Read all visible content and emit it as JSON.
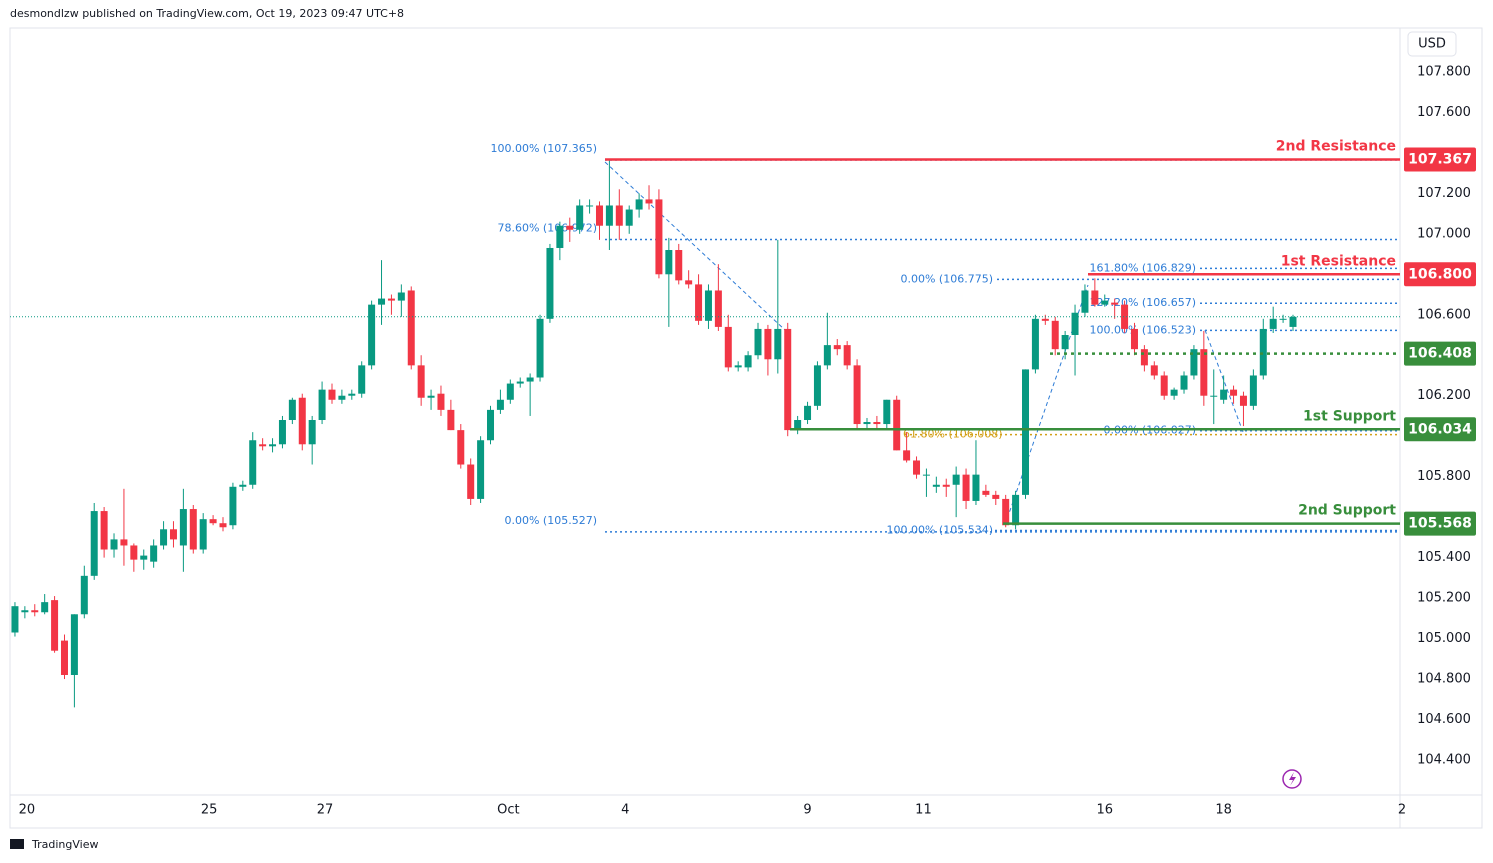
{
  "header": "desmondlzw published on TradingView.com, Oct 19, 2023 09:47 UTC+8",
  "footer": "TradingView",
  "chart_data": {
    "type": "candlestick",
    "currency": "USD",
    "open": [
      105.03,
      105.13,
      105.14,
      105.13,
      105.19,
      104.99,
      104.82,
      105.12,
      105.31,
      105.63,
      105.44,
      105.49,
      105.46,
      105.39,
      105.38,
      105.46,
      105.54,
      105.46,
      105.64,
      105.44,
      105.59,
      105.57,
      105.56,
      105.75,
      105.76,
      105.96,
      105.95,
      105.96,
      106.08,
      106.19,
      105.96,
      106.08,
      106.23,
      106.18,
      106.2,
      106.21,
      106.35,
      106.65,
      106.68,
      106.67,
      106.72,
      106.35,
      106.19,
      106.21,
      106.13,
      106.03,
      105.86,
      105.69,
      105.98,
      106.13,
      106.18,
      106.26,
      106.27,
      106.29,
      106.58,
      106.93,
      107.04,
      107.02,
      107.14,
      107.14,
      107.04,
      107.14,
      107.04,
      107.12,
      107.17,
      107.17,
      106.8,
      106.92,
      106.77,
      106.75,
      106.57,
      106.72,
      106.54,
      106.34,
      106.34,
      106.4,
      106.53,
      106.38,
      106.53,
      106.03,
      106.08,
      106.15,
      106.35,
      106.45,
      106.45,
      106.35,
      106.06,
      106.07,
      106.06,
      106.18,
      105.93,
      105.88,
      105.81,
      105.75,
      105.76,
      105.76,
      105.81,
      105.68,
      105.73,
      105.71,
      105.69,
      105.56,
      105.71,
      106.33,
      106.58,
      106.57,
      106.43,
      106.5,
      106.61,
      106.72,
      106.65,
      106.66,
      106.65,
      106.53,
      106.43,
      106.35,
      106.3,
      106.2,
      106.23,
      106.3,
      106.43,
      106.2,
      106.18,
      106.23,
      106.2,
      106.15,
      106.3,
      106.53,
      106.58,
      106.54
    ],
    "high": [
      105.18,
      105.16,
      105.17,
      105.22,
      105.21,
      105.02,
      105.12,
      105.36,
      105.67,
      105.65,
      105.52,
      105.74,
      105.47,
      105.44,
      105.49,
      105.58,
      105.58,
      105.74,
      105.66,
      105.62,
      105.61,
      105.6,
      105.77,
      105.78,
      106.02,
      105.99,
      105.99,
      106.1,
      106.19,
      106.21,
      106.1,
      106.27,
      106.26,
      106.23,
      106.23,
      106.37,
      106.67,
      106.87,
      106.7,
      106.75,
      106.74,
      106.4,
      106.23,
      106.25,
      106.18,
      106.06,
      105.89,
      106.0,
      106.15,
      106.23,
      106.28,
      106.29,
      106.31,
      106.6,
      106.95,
      107.06,
      107.08,
      107.17,
      107.17,
      107.16,
      107.37,
      107.22,
      107.14,
      107.2,
      107.24,
      107.22,
      106.98,
      106.95,
      106.82,
      106.8,
      106.75,
      106.85,
      106.6,
      106.37,
      106.42,
      106.56,
      106.55,
      106.97,
      106.56,
      106.1,
      106.17,
      106.37,
      106.61,
      106.48,
      106.47,
      106.38,
      106.09,
      106.1,
      106.18,
      106.2,
      106.02,
      105.9,
      105.84,
      105.8,
      105.79,
      105.85,
      105.84,
      105.98,
      105.76,
      105.73,
      105.71,
      105.73,
      106.33,
      106.6,
      106.6,
      106.59,
      106.52,
      106.65,
      106.75,
      106.78,
      106.7,
      106.68,
      106.67,
      106.56,
      106.45,
      106.37,
      106.32,
      106.24,
      106.32,
      106.45,
      106.52,
      106.33,
      106.3,
      106.25,
      106.22,
      106.33,
      106.58,
      106.64,
      106.6,
      106.6
    ],
    "low": [
      105.01,
      105.1,
      105.11,
      105.12,
      104.93,
      104.8,
      104.66,
      105.1,
      105.29,
      105.4,
      105.4,
      105.36,
      105.33,
      105.34,
      105.35,
      105.44,
      105.45,
      105.33,
      105.42,
      105.42,
      105.56,
      105.53,
      105.54,
      105.73,
      105.74,
      105.93,
      105.92,
      105.94,
      106.06,
      105.93,
      105.86,
      106.06,
      106.16,
      106.16,
      106.18,
      106.19,
      106.33,
      106.55,
      106.6,
      106.59,
      106.33,
      106.15,
      106.13,
      106.1,
      106.03,
      105.84,
      105.66,
      105.67,
      105.96,
      106.11,
      106.16,
      106.24,
      106.1,
      106.27,
      106.56,
      106.87,
      106.96,
      107.0,
      107.1,
      106.97,
      106.92,
      106.97,
      107.0,
      107.08,
      107.12,
      106.78,
      106.54,
      106.75,
      106.73,
      106.55,
      106.53,
      106.52,
      106.32,
      106.32,
      106.32,
      106.38,
      106.3,
      106.31,
      106.0,
      106.01,
      106.06,
      106.13,
      106.33,
      106.4,
      106.33,
      106.04,
      106.04,
      106.03,
      106.04,
      105.93,
      105.87,
      105.79,
      105.7,
      105.72,
      105.7,
      105.6,
      105.64,
      105.66,
      105.7,
      105.66,
      105.55,
      105.54,
      105.69,
      106.31,
      106.55,
      106.4,
      106.38,
      106.3,
      106.59,
      106.64,
      106.64,
      106.58,
      106.51,
      106.4,
      106.32,
      106.28,
      106.18,
      106.18,
      106.21,
      106.28,
      106.15,
      106.06,
      106.16,
      106.16,
      106.05,
      106.13,
      106.28,
      106.51,
      106.56,
      106.52
    ],
    "close": [
      105.16,
      105.14,
      105.13,
      105.18,
      104.94,
      104.82,
      105.12,
      105.31,
      105.63,
      105.44,
      105.49,
      105.46,
      105.39,
      105.41,
      105.46,
      105.54,
      105.49,
      105.64,
      105.44,
      105.59,
      105.57,
      105.55,
      105.75,
      105.76,
      105.98,
      105.95,
      105.96,
      106.08,
      106.18,
      105.96,
      106.08,
      106.23,
      106.18,
      106.2,
      106.21,
      106.35,
      106.65,
      106.68,
      106.67,
      106.71,
      106.35,
      106.19,
      106.2,
      106.13,
      106.03,
      105.86,
      105.69,
      105.98,
      106.13,
      106.18,
      106.26,
      106.27,
      106.29,
      106.58,
      106.93,
      107.04,
      107.02,
      107.14,
      107.14,
      107.04,
      107.14,
      107.04,
      107.12,
      107.17,
      107.15,
      106.8,
      106.92,
      106.77,
      106.75,
      106.57,
      106.72,
      106.54,
      106.34,
      106.35,
      106.4,
      106.53,
      106.38,
      106.53,
      106.03,
      106.08,
      106.15,
      106.35,
      106.45,
      106.43,
      106.35,
      106.06,
      106.07,
      106.06,
      106.18,
      105.93,
      105.88,
      105.81,
      105.81,
      105.76,
      105.75,
      105.81,
      105.68,
      105.81,
      105.71,
      105.69,
      105.56,
      105.71,
      106.33,
      106.58,
      106.57,
      106.43,
      106.5,
      106.61,
      106.72,
      106.65,
      106.67,
      106.65,
      106.53,
      106.43,
      106.35,
      106.3,
      106.2,
      106.23,
      106.3,
      106.43,
      106.2,
      106.2,
      106.23,
      106.2,
      106.15,
      106.3,
      106.53,
      106.58,
      106.58,
      106.59
    ],
    "up_color": "#089981",
    "down_color": "#f23645",
    "xlim": [
      -0.5,
      139.8
    ],
    "xticks": [
      {
        "value": 1.2,
        "label": "20"
      },
      {
        "value": 19.6,
        "label": "25"
      },
      {
        "value": 31.3,
        "label": "27"
      },
      {
        "value": 49.8,
        "label": "Oct"
      },
      {
        "value": 61.6,
        "label": "4"
      },
      {
        "value": 80,
        "label": "9"
      },
      {
        "value": 91.7,
        "label": "11"
      },
      {
        "value": 110,
        "label": "16"
      },
      {
        "value": 122,
        "label": "18"
      },
      {
        "value": 140,
        "label": "2"
      }
    ],
    "ylim": [
      104.227,
      108.017
    ],
    "yticks": [
      {
        "value": 107.8,
        "label": "107.800"
      },
      {
        "value": 107.6,
        "label": "107.600"
      },
      {
        "value": 107.2,
        "label": "107.200"
      },
      {
        "value": 107,
        "label": "107.000"
      },
      {
        "value": 106.6,
        "label": "106.600"
      },
      {
        "value": 106.2,
        "label": "106.200"
      },
      {
        "value": 105.8,
        "label": "105.800"
      },
      {
        "value": 105.4,
        "label": "105.400"
      },
      {
        "value": 105.2,
        "label": "105.200"
      },
      {
        "value": 105,
        "label": "105.000"
      },
      {
        "value": 104.8,
        "label": "104.800"
      },
      {
        "value": 104.6,
        "label": "104.600"
      },
      {
        "value": 104.4,
        "label": "104.400"
      }
    ],
    "levels": [
      {
        "name": "2nd Resistance",
        "value": 107.367,
        "label": "107.367",
        "color": "#f23645"
      },
      {
        "name": "1st Resistance",
        "value": 106.8,
        "label": "106.800",
        "color": "#f23645"
      },
      {
        "value": 106.408,
        "label": "106.408",
        "color": "#388e3c"
      },
      {
        "name": "1st Support",
        "value": 106.034,
        "label": "106.034",
        "color": "#388e3c"
      },
      {
        "name": "2nd Support",
        "value": 105.568,
        "label": "105.568",
        "color": "#388e3c"
      }
    ],
    "fib_color": "#2e7cd6",
    "fib_lines": [
      {
        "label": "100.00% (107.365)",
        "value": 107.365
      },
      {
        "label": "78.60% (106.972)",
        "value": 106.972
      },
      {
        "label": "0.00% (105.527)",
        "value": 105.527
      },
      {
        "label": "100.00% (105.534)",
        "value": 105.534
      },
      {
        "label": "61.80% (106.008)",
        "value": 106.008,
        "color": "#d4a017"
      },
      {
        "label": "0.00% (106.775)",
        "value": 106.775
      },
      {
        "label": "161.80% (106.829)",
        "value": 106.829
      },
      {
        "label": "127.20% (106.657)",
        "value": 106.657
      },
      {
        "label": "100.00% (106.523)",
        "value": 106.523
      },
      {
        "label": "0.00% (106.027)",
        "value": 106.027
      }
    ]
  }
}
